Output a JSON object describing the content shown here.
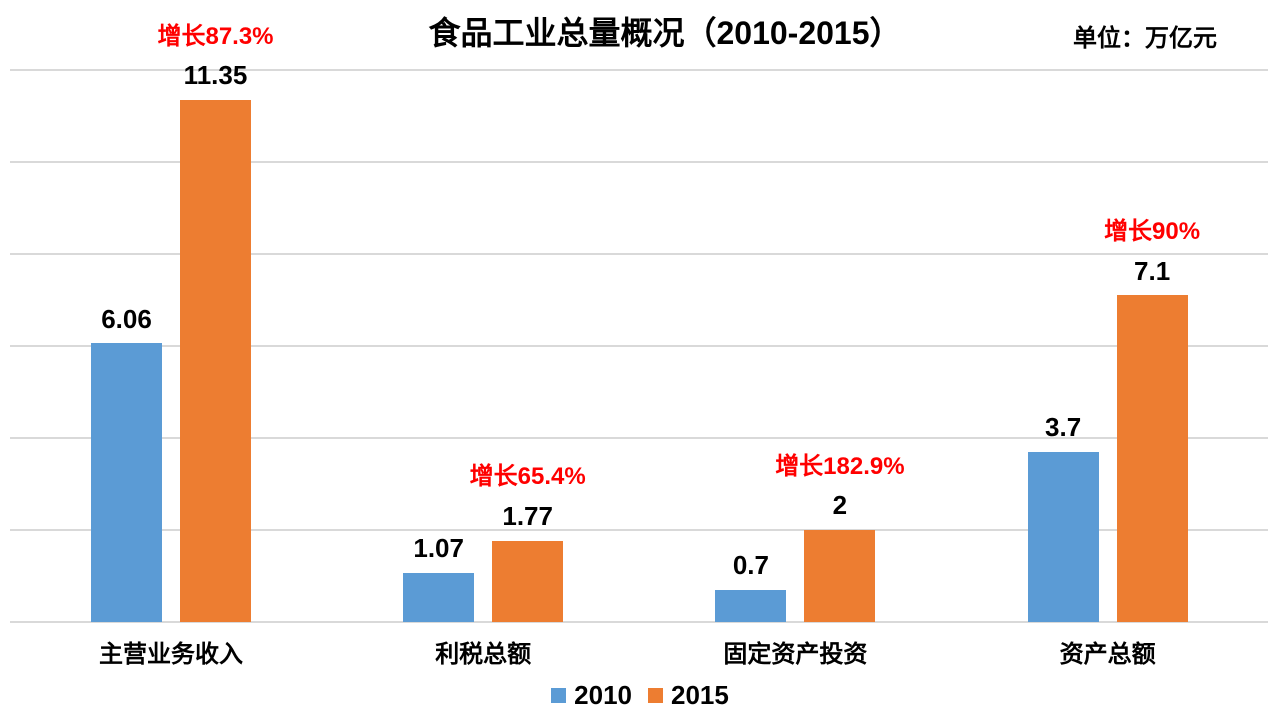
{
  "header": {
    "title": "食品工业总量概况（2010-2015）",
    "unit": "单位：万亿元"
  },
  "colors": {
    "series_2010": "#5B9BD5",
    "series_2015": "#ED7D31",
    "growth_label": "#FF0000",
    "gridline": "#D9D9D9",
    "text": "#000000",
    "background": "#FFFFFF"
  },
  "legend": {
    "position": "bottom",
    "items": [
      {
        "label": "2010",
        "color": "#5B9BD5"
      },
      {
        "label": "2015",
        "color": "#ED7D31"
      }
    ]
  },
  "chart_data": {
    "type": "bar",
    "title": "食品工业总量概况（2010-2015）",
    "unit_label": "单位：万亿元",
    "categories": [
      "主营业务收入",
      "利税总额",
      "固定资产投资",
      "资产总额"
    ],
    "series": [
      {
        "name": "2010",
        "color": "#5B9BD5",
        "values": [
          6.06,
          1.07,
          0.7,
          3.7
        ]
      },
      {
        "name": "2015",
        "color": "#ED7D31",
        "values": [
          11.35,
          1.77,
          2,
          7.1
        ]
      }
    ],
    "value_labels": {
      "s2010": [
        "6.06",
        "1.07",
        "0.7",
        "3.7"
      ],
      "s2015": [
        "11.35",
        "1.77",
        "2",
        "7.1"
      ]
    },
    "growth_labels": [
      "增长87.3%",
      "增长65.4%",
      "增长182.9%",
      "增长90%"
    ],
    "growth_percent": [
      87.3,
      65.4,
      182.9,
      90
    ],
    "growth_color": "#FF0000",
    "xlabel": "",
    "ylabel": "",
    "ylim": [
      0,
      12
    ],
    "grid_step": 2,
    "grid": "on",
    "y_axis_tick_labels_visible": false,
    "legend_position": "bottom"
  }
}
